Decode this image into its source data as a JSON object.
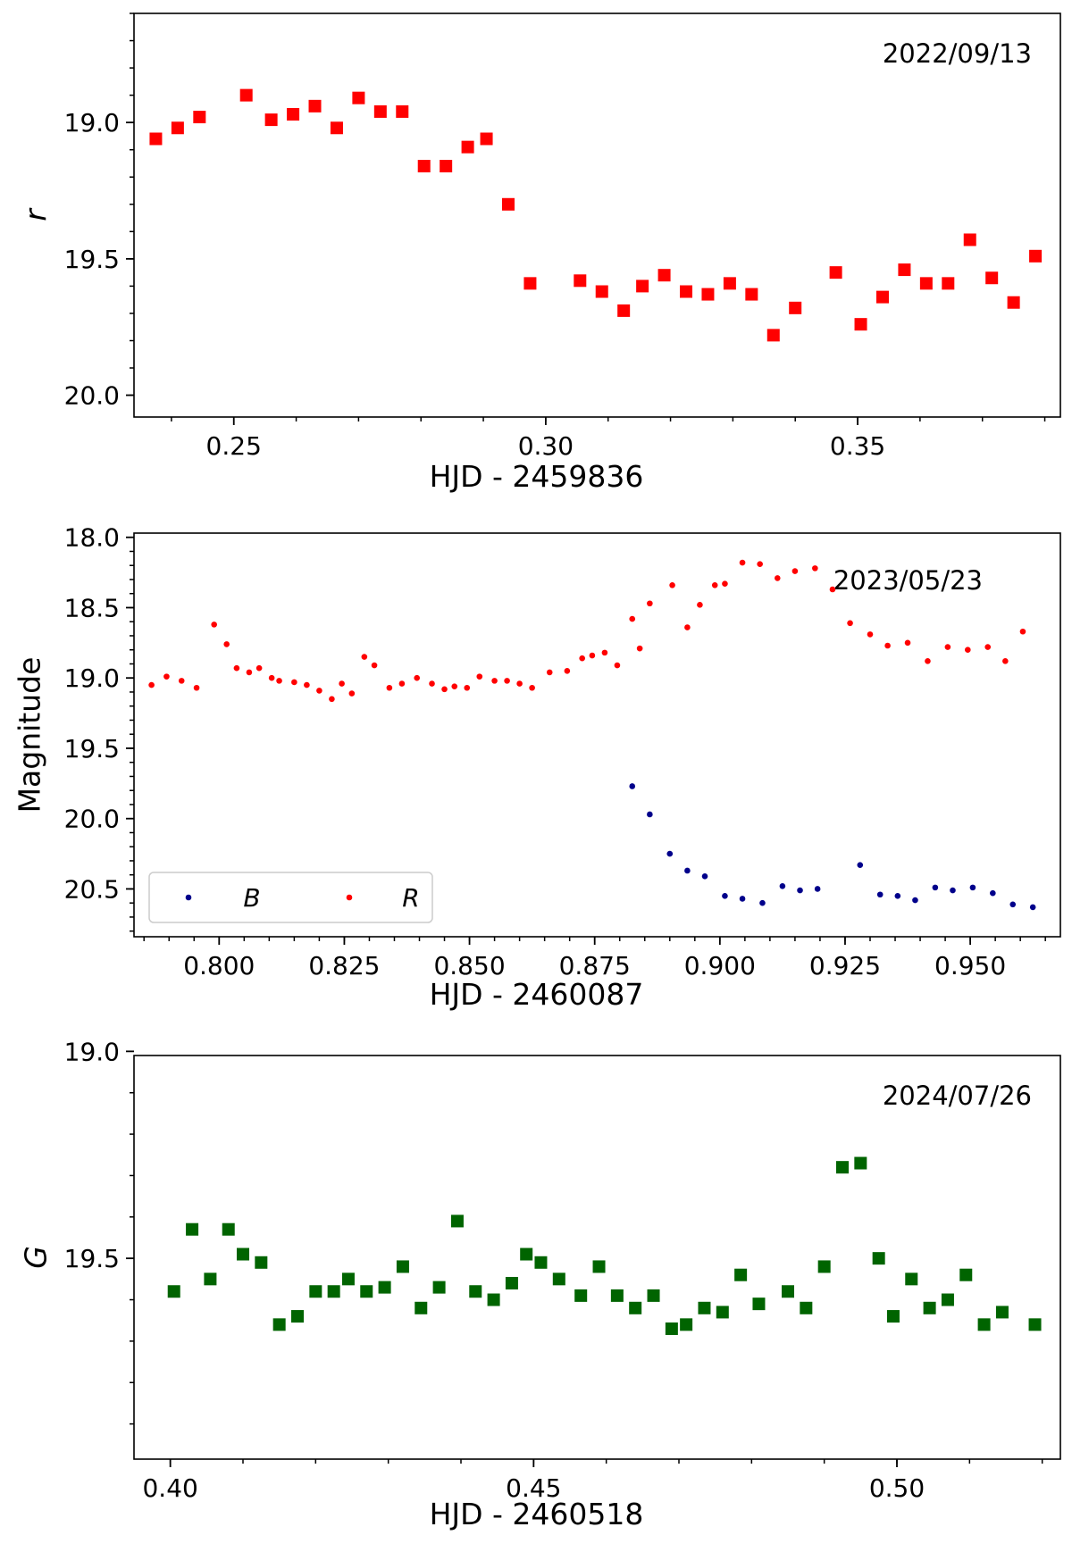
{
  "chart_data": [
    {
      "type": "scatter",
      "marker": "square",
      "date_label": "2022/09/13",
      "xlabel": "HJD - 2459836",
      "ylabel": "r",
      "ylabel_italic": true,
      "xlim": [
        0.234,
        0.3825
      ],
      "ylim": [
        20.08,
        18.6
      ],
      "invert_y": true,
      "x_ticks": [
        0.25,
        0.3,
        0.35
      ],
      "x_tick_labels": [
        "0.25",
        "0.30",
        "0.35"
      ],
      "y_ticks": [
        19.0,
        19.5,
        20.0
      ],
      "y_tick_labels": [
        "19.0",
        "19.5",
        "20.0"
      ],
      "x_minor_step": 0.01,
      "y_minor_step": 0.1,
      "series": [
        {
          "name": "r",
          "color": "#ff0000",
          "x": [
            0.2375,
            0.241,
            0.2445,
            0.252,
            0.256,
            0.2595,
            0.263,
            0.2665,
            0.27,
            0.2735,
            0.277,
            0.2805,
            0.284,
            0.2875,
            0.2905,
            0.294,
            0.2975,
            0.3055,
            0.309,
            0.3125,
            0.3155,
            0.319,
            0.3225,
            0.326,
            0.3295,
            0.333,
            0.3365,
            0.34,
            0.3465,
            0.3505,
            0.354,
            0.3575,
            0.361,
            0.3645,
            0.368,
            0.3715,
            0.375,
            0.3785
          ],
          "y": [
            19.06,
            19.02,
            18.98,
            18.9,
            18.99,
            18.97,
            18.94,
            19.02,
            18.91,
            18.96,
            18.96,
            19.16,
            19.16,
            19.09,
            19.06,
            19.3,
            19.59,
            19.58,
            19.62,
            19.69,
            19.6,
            19.56,
            19.62,
            19.63,
            19.59,
            19.63,
            19.78,
            19.68,
            19.55,
            19.74,
            19.64,
            19.54,
            19.59,
            19.59,
            19.43,
            19.57,
            19.66,
            19.49
          ]
        }
      ]
    },
    {
      "type": "scatter",
      "marker": "dot",
      "date_label": "2023/05/23",
      "xlabel": "HJD - 2460087",
      "ylabel": "Magnitude",
      "ylabel_italic": false,
      "xlim": [
        0.783,
        0.968
      ],
      "ylim": [
        20.84,
        17.97
      ],
      "invert_y": true,
      "x_ticks": [
        0.8,
        0.825,
        0.85,
        0.875,
        0.9,
        0.925,
        0.95
      ],
      "x_tick_labels": [
        "0.800",
        "0.825",
        "0.850",
        "0.875",
        "0.900",
        "0.925",
        "0.950"
      ],
      "y_ticks": [
        18.0,
        18.5,
        19.0,
        19.5,
        20.0,
        20.5
      ],
      "y_tick_labels": [
        "18.0",
        "18.5",
        "19.0",
        "19.5",
        "20.0",
        "20.5"
      ],
      "x_minor_step": 0.005,
      "y_minor_step": 0.1,
      "legend": {
        "position": "lower-left",
        "entries": [
          "B",
          "R"
        ]
      },
      "series": [
        {
          "name": "B",
          "color": "#00008b",
          "x": [
            0.8825,
            0.886,
            0.89,
            0.8935,
            0.897,
            0.901,
            0.9045,
            0.9085,
            0.9125,
            0.916,
            0.9195,
            0.928,
            0.932,
            0.9355,
            0.939,
            0.943,
            0.9465,
            0.9505,
            0.9545,
            0.9585,
            0.9625
          ],
          "y": [
            19.77,
            19.97,
            20.25,
            20.37,
            20.41,
            20.55,
            20.57,
            20.6,
            20.48,
            20.51,
            20.5,
            20.33,
            20.54,
            20.55,
            20.58,
            20.49,
            20.51,
            20.49,
            20.53,
            20.61,
            20.63
          ]
        },
        {
          "name": "R",
          "color": "#ff0000",
          "x": [
            0.7865,
            0.7895,
            0.7925,
            0.7955,
            0.799,
            0.8015,
            0.8035,
            0.806,
            0.808,
            0.8105,
            0.812,
            0.815,
            0.8175,
            0.82,
            0.8225,
            0.8245,
            0.8265,
            0.829,
            0.831,
            0.834,
            0.8365,
            0.8395,
            0.8425,
            0.845,
            0.847,
            0.8495,
            0.852,
            0.855,
            0.8575,
            0.86,
            0.8625,
            0.866,
            0.8695,
            0.8725,
            0.8745,
            0.877,
            0.8795,
            0.8825,
            0.884,
            0.886,
            0.8905,
            0.8935,
            0.896,
            0.899,
            0.901,
            0.9045,
            0.908,
            0.9115,
            0.915,
            0.919,
            0.9225,
            0.926,
            0.93,
            0.9335,
            0.9375,
            0.9415,
            0.9455,
            0.9495,
            0.9535,
            0.957,
            0.9605
          ],
          "y": [
            19.05,
            18.99,
            19.02,
            19.07,
            18.62,
            18.76,
            18.93,
            18.96,
            18.93,
            19.0,
            19.02,
            19.03,
            19.05,
            19.09,
            19.15,
            19.04,
            19.11,
            18.85,
            18.91,
            19.07,
            19.04,
            19.0,
            19.04,
            19.08,
            19.06,
            19.07,
            18.99,
            19.02,
            19.02,
            19.04,
            19.07,
            18.96,
            18.95,
            18.86,
            18.84,
            18.82,
            18.91,
            18.58,
            18.79,
            18.47,
            18.34,
            18.64,
            18.48,
            18.34,
            18.33,
            18.18,
            18.19,
            18.29,
            18.24,
            18.22,
            18.37,
            18.61,
            18.69,
            18.77,
            18.75,
            18.88,
            18.78,
            18.8,
            18.78,
            18.88,
            18.67
          ]
        }
      ]
    },
    {
      "type": "scatter",
      "marker": "square",
      "date_label": "2024/07/26",
      "xlabel": "HJD - 2460518",
      "ylabel": "G",
      "ylabel_italic": true,
      "xlim": [
        0.395,
        0.5225
      ],
      "ylim": [
        19.985,
        19.01
      ],
      "invert_y": true,
      "x_ticks": [
        0.4,
        0.45,
        0.5
      ],
      "x_tick_labels": [
        "0.40",
        "0.45",
        "0.50"
      ],
      "y_ticks": [
        19.0,
        19.5
      ],
      "y_tick_labels": [
        "19.0",
        "19.5"
      ],
      "x_minor_step": 0.01,
      "y_minor_step": 0.1,
      "series": [
        {
          "name": "G",
          "color": "#006400",
          "x": [
            0.4005,
            0.403,
            0.4055,
            0.408,
            0.41,
            0.4125,
            0.415,
            0.4175,
            0.42,
            0.4225,
            0.4245,
            0.427,
            0.4295,
            0.432,
            0.4345,
            0.437,
            0.4395,
            0.442,
            0.4445,
            0.447,
            0.449,
            0.451,
            0.4535,
            0.4565,
            0.459,
            0.4615,
            0.464,
            0.4665,
            0.469,
            0.471,
            0.4735,
            0.476,
            0.4785,
            0.481,
            0.485,
            0.4875,
            0.49,
            0.4925,
            0.495,
            0.4975,
            0.4995,
            0.502,
            0.5045,
            0.507,
            0.5095,
            0.512,
            0.5145,
            0.519
          ],
          "y": [
            19.58,
            19.43,
            19.55,
            19.43,
            19.49,
            19.51,
            19.66,
            19.64,
            19.58,
            19.58,
            19.55,
            19.58,
            19.57,
            19.52,
            19.62,
            19.57,
            19.41,
            19.58,
            19.6,
            19.56,
            19.49,
            19.51,
            19.55,
            19.59,
            19.52,
            19.59,
            19.62,
            19.59,
            19.67,
            19.66,
            19.62,
            19.63,
            19.54,
            19.61,
            19.58,
            19.62,
            19.52,
            19.28,
            19.27,
            19.5,
            19.64,
            19.55,
            19.62,
            19.6,
            19.54,
            19.66,
            19.63,
            19.66
          ]
        }
      ]
    }
  ]
}
